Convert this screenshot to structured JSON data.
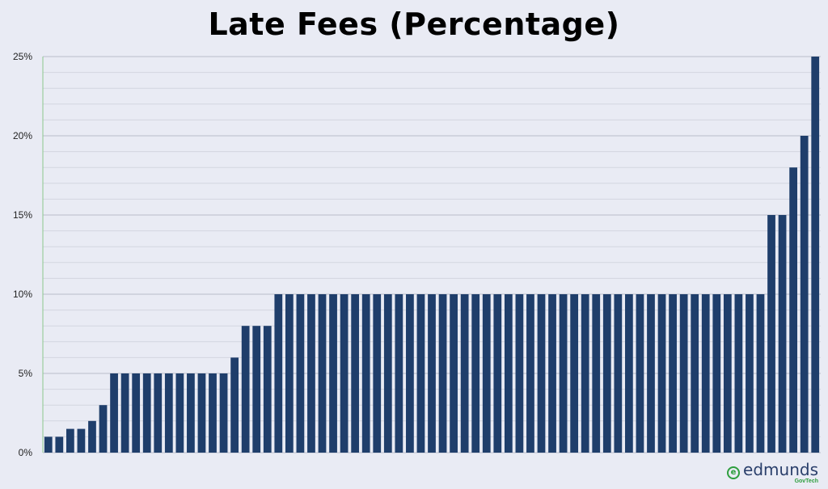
{
  "chart_data": {
    "type": "bar",
    "title": "Late Fees (Percentage)",
    "xlabel": "",
    "ylabel": "",
    "ylim": [
      0,
      25
    ],
    "yticks": [
      0,
      5,
      10,
      15,
      20,
      25
    ],
    "ytick_labels": [
      "0%",
      "5%",
      "10%",
      "15%",
      "20%",
      "25%"
    ],
    "grid": true,
    "bar_color": "#1f3e6b",
    "values": [
      1,
      1,
      1.5,
      1.5,
      2,
      3,
      5,
      5,
      5,
      5,
      5,
      5,
      5,
      5,
      5,
      5,
      5,
      6,
      8,
      8,
      8,
      10,
      10,
      10,
      10,
      10,
      10,
      10,
      10,
      10,
      10,
      10,
      10,
      10,
      10,
      10,
      10,
      10,
      10,
      10,
      10,
      10,
      10,
      10,
      10,
      10,
      10,
      10,
      10,
      10,
      10,
      10,
      10,
      10,
      10,
      10,
      10,
      10,
      10,
      10,
      10,
      10,
      10,
      10,
      10,
      10,
      15,
      15,
      18,
      20,
      25
    ]
  },
  "branding": {
    "logo_word": "edmunds",
    "logo_sub": "GovTech",
    "logo_mark": "e",
    "accent_color": "#2e9e3e"
  }
}
